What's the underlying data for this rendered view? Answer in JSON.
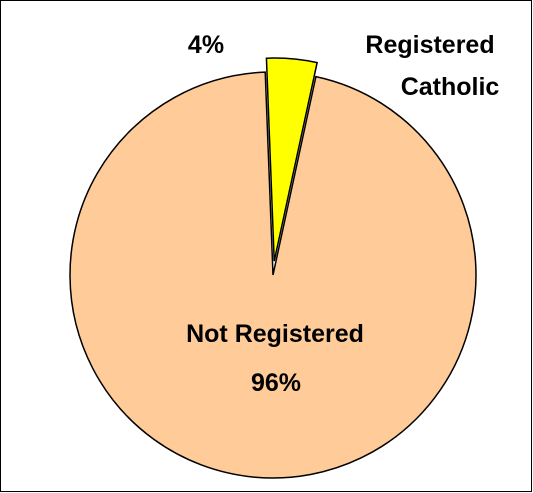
{
  "chart_data": {
    "type": "pie",
    "slices": [
      {
        "label": "Registered Catholic",
        "label_line1": "Registered",
        "label_line2": "Catholic",
        "value": 4,
        "percent_label": "4%",
        "color": "#FFFF00",
        "exploded": true
      },
      {
        "label": "Not Registered",
        "value": 96,
        "percent_label": "96%",
        "color": "#FFCC99",
        "exploded": false
      }
    ],
    "outline_color": "#000000",
    "background": "#FFFFFF"
  }
}
